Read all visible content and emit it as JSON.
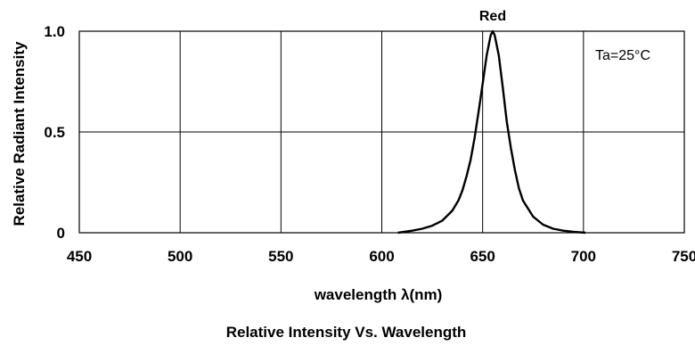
{
  "chart_data": {
    "type": "line",
    "title": "Relative Intensity Vs. Wavelength",
    "xlabel": "wavelength λ(nm)",
    "ylabel": "Relative Radiant Intensity",
    "xlim": [
      450,
      750
    ],
    "ylim": [
      0,
      1.0
    ],
    "x_ticks": [
      450,
      500,
      550,
      600,
      650,
      700,
      750
    ],
    "y_ticks": [
      0,
      0.5,
      1.0
    ],
    "x_tick_labels": [
      "450",
      "500",
      "550",
      "600",
      "650",
      "700",
      "750"
    ],
    "y_tick_labels": [
      "0",
      "0.5",
      "1.0"
    ],
    "grid": true,
    "legend": "none",
    "annotation": "Ta=25°C",
    "series": [
      {
        "name": "Red",
        "color": "#000000",
        "x": [
          608,
          615,
          620,
          625,
          630,
          635,
          638,
          640,
          642,
          644,
          646,
          648,
          650,
          652,
          654,
          655,
          656,
          658,
          660,
          662,
          664,
          666,
          668,
          670,
          675,
          680,
          685,
          690,
          695,
          701
        ],
        "y": [
          0.0,
          0.01,
          0.02,
          0.035,
          0.06,
          0.11,
          0.16,
          0.21,
          0.28,
          0.36,
          0.47,
          0.6,
          0.74,
          0.88,
          0.98,
          1.0,
          0.98,
          0.88,
          0.72,
          0.55,
          0.42,
          0.31,
          0.22,
          0.16,
          0.08,
          0.04,
          0.02,
          0.01,
          0.005,
          0.0
        ]
      }
    ]
  }
}
